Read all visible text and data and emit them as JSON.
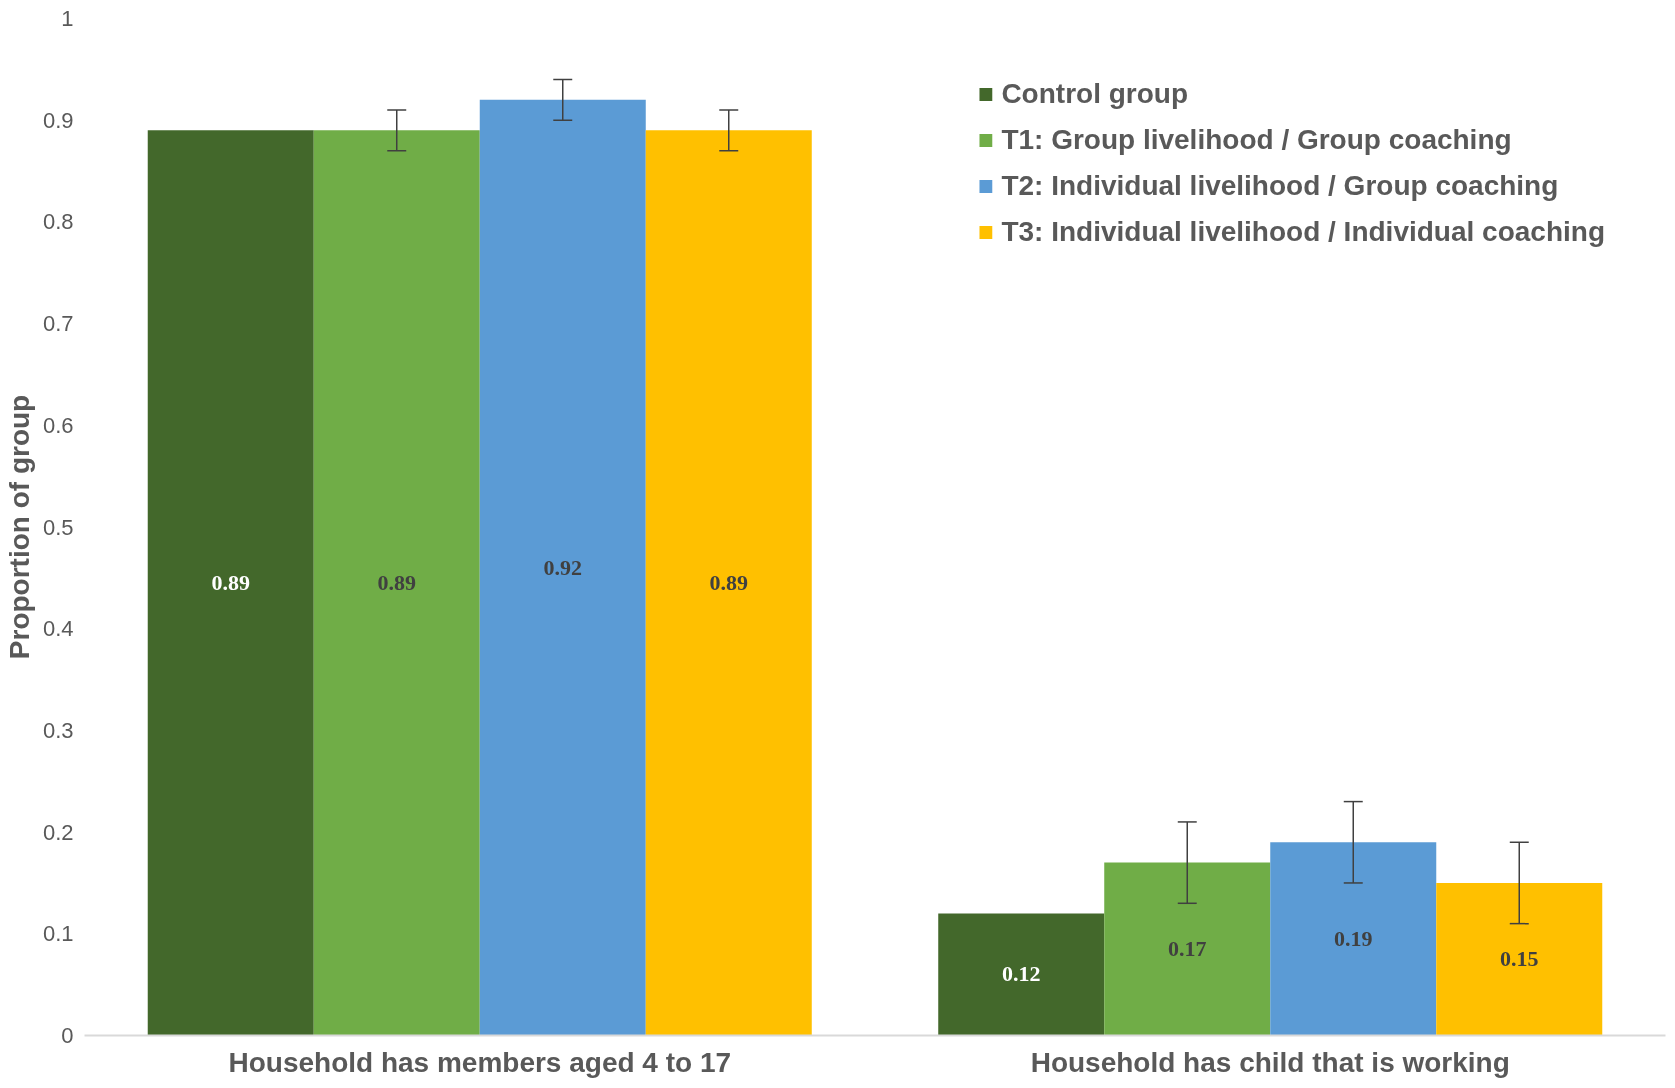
{
  "chart_data": {
    "type": "bar",
    "ylabel": "Proportion of group",
    "categories": [
      "Household has members aged 4 to 17",
      "Household has child that is working"
    ],
    "series": [
      {
        "name": "Control group",
        "color": "#43682b",
        "values": [
          0.89,
          0.12
        ],
        "errors": [
          null,
          null
        ]
      },
      {
        "name": "T1: Group livelihood / Group coaching",
        "color": "#70ad47",
        "values": [
          0.89,
          0.17
        ],
        "errors": [
          0.02,
          0.04
        ]
      },
      {
        "name": "T2: Individual livelihood / Group coaching",
        "color": "#5b9bd5",
        "values": [
          0.92,
          0.19
        ],
        "errors": [
          0.02,
          0.04
        ]
      },
      {
        "name": "T3: Individual livelihood / Individual coaching",
        "color": "#ffc000",
        "values": [
          0.89,
          0.15
        ],
        "errors": [
          0.02,
          0.04
        ]
      }
    ],
    "ylim": [
      0,
      1
    ],
    "yticks": [
      0,
      0.1,
      0.2,
      0.3,
      0.4,
      0.5,
      0.6,
      0.7,
      0.8,
      0.9,
      1
    ],
    "data_labels": true,
    "legend": "top right",
    "grid": false
  }
}
